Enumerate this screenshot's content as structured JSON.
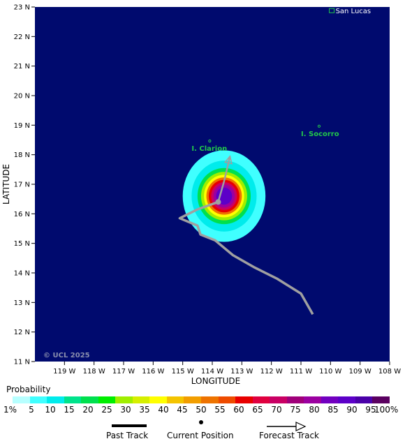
{
  "map": {
    "lon_labels": [
      "119 W",
      "118 W",
      "117 W",
      "116 W",
      "115 W",
      "114 W",
      "113 W",
      "112 W",
      "111 W",
      "110 W",
      "109 W",
      "108 W"
    ],
    "lat_labels": [
      "23 N",
      "22 N",
      "21 N",
      "20 N",
      "19 N",
      "18 N",
      "17 N",
      "16 N",
      "15 N",
      "14 N",
      "13 N",
      "12 N",
      "11 N"
    ],
    "lon_range": [
      -120,
      -108
    ],
    "lat_range": [
      11,
      23
    ],
    "x_axis_title": "LONGITUDE",
    "y_axis_title": "LATITUDE",
    "ocean_color": "#000a6e",
    "places": [
      {
        "name": "San Lucas",
        "lon": -109.9,
        "lat": 22.9
      },
      {
        "name": "I. Clarion",
        "lon": -114.7,
        "lat": 18.3
      },
      {
        "name": "I. Socorro",
        "lon": -111.0,
        "lat": 18.8
      }
    ],
    "copyright": "© UCL 2025",
    "past_track": [
      [
        -110.6,
        12.6
      ],
      [
        -111.0,
        13.3
      ],
      [
        -111.8,
        13.8
      ],
      [
        -112.6,
        14.2
      ],
      [
        -113.3,
        14.6
      ],
      [
        -113.9,
        15.1
      ],
      [
        -114.4,
        15.3
      ],
      [
        -114.5,
        15.6
      ],
      [
        -115.1,
        15.85
      ],
      [
        -114.5,
        16.15
      ],
      [
        -113.8,
        16.4
      ]
    ],
    "forecast_track": [
      [
        -113.8,
        16.4
      ],
      [
        -113.6,
        17.1
      ],
      [
        -113.4,
        17.95
      ]
    ],
    "current_position": {
      "lon": -113.8,
      "lat": 16.4
    },
    "probability_field": {
      "center": {
        "lon": -113.6,
        "lat": 16.6
      },
      "rings": [
        {
          "pct": 5,
          "rx": 1.4,
          "ry": 1.55
        },
        {
          "pct": 10,
          "rx": 1.1,
          "ry": 1.2
        },
        {
          "pct": 20,
          "rx": 0.9,
          "ry": 0.95
        },
        {
          "pct": 30,
          "rx": 0.78,
          "ry": 0.82
        },
        {
          "pct": 40,
          "rx": 0.68,
          "ry": 0.72
        },
        {
          "pct": 50,
          "rx": 0.6,
          "ry": 0.63
        },
        {
          "pct": 60,
          "rx": 0.52,
          "ry": 0.55
        },
        {
          "pct": 70,
          "rx": 0.44,
          "ry": 0.47
        },
        {
          "pct": 80,
          "rx": 0.36,
          "ry": 0.39
        },
        {
          "pct": 90,
          "rx": 0.27,
          "ry": 0.29
        }
      ]
    }
  },
  "legend": {
    "title": "Probability",
    "colors": [
      "#b7ffff",
      "#40ffff",
      "#00ecec",
      "#00e38c",
      "#00e04e",
      "#00ee00",
      "#a0ee00",
      "#d6ef00",
      "#ffff00",
      "#f4c400",
      "#f29e00",
      "#ee7300",
      "#ee4b00",
      "#e80000",
      "#e0003f",
      "#c90064",
      "#a0007a",
      "#9b00a0",
      "#7200c0",
      "#5c00c8",
      "#4a00a8",
      "#5a0060"
    ],
    "tick_labels": [
      "1%",
      "5",
      "10",
      "15",
      "20",
      "25",
      "30",
      "35",
      "40",
      "45",
      "50",
      "55",
      "60",
      "65",
      "70",
      "75",
      "80",
      "85",
      "90",
      "95",
      "100%"
    ],
    "past_track_label": "Past Track",
    "current_position_label": "Current Position",
    "forecast_track_label": "Forecast Track"
  }
}
